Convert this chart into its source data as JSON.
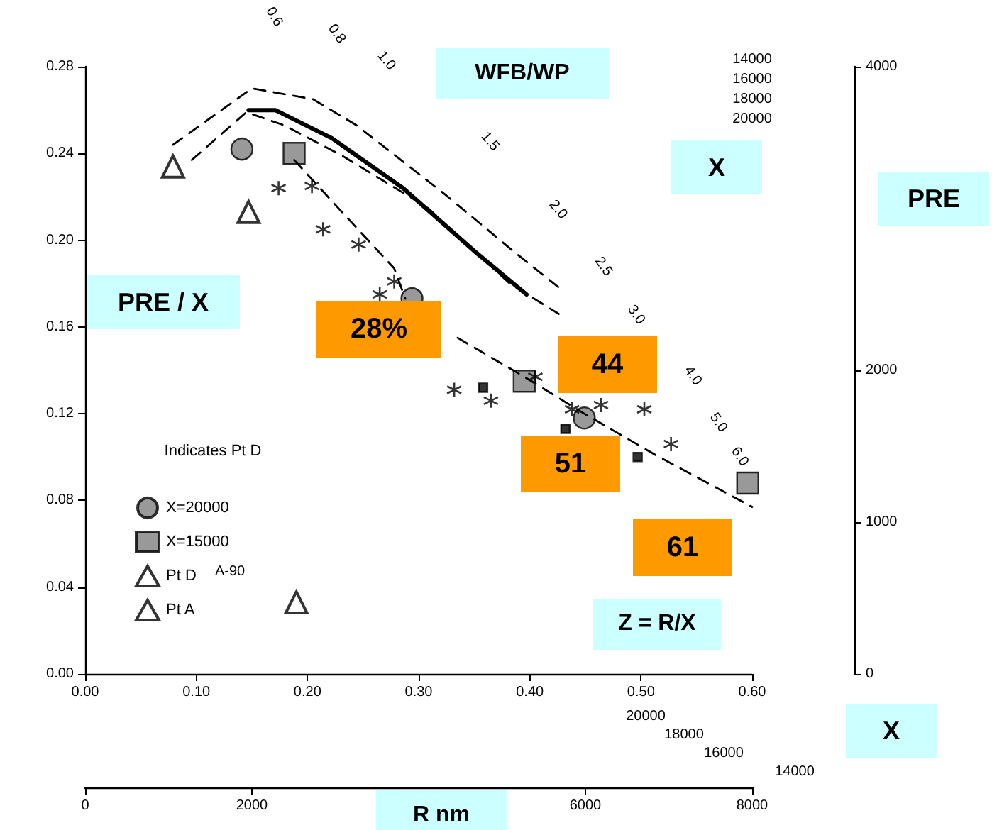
{
  "chart_data": {
    "type": "scatter",
    "title": "WFB/WP",
    "xlabel": "Z = R/X",
    "ylabel": "PRE / X",
    "y2label": "PRE",
    "x2label": "R nm",
    "legend_title": "Indicates Pt D",
    "xlim": [
      0,
      0.6
    ],
    "xticks": [
      {
        "value": 0,
        "label": "0.00"
      },
      {
        "value": 0.1,
        "label": "0.10"
      },
      {
        "value": 0.2,
        "label": "0.20"
      },
      {
        "value": 0.3,
        "label": "0.30"
      },
      {
        "value": 0.4,
        "label": "0.40"
      },
      {
        "value": 0.5,
        "label": "0.50"
      },
      {
        "value": 0.6,
        "label": "0.60"
      }
    ],
    "ylim": [
      0,
      0.28
    ],
    "yticks": [
      {
        "value": 0,
        "label": "0.00"
      },
      0.04,
      0.08,
      0.12,
      0.16,
      {
        "value": 0.2,
        "label": "0.20"
      },
      0.24,
      0.28
    ],
    "y2lim": [
      0,
      4000
    ],
    "y2ticks": [
      0,
      1000,
      2000,
      4000
    ],
    "x2lim": [
      0,
      8000
    ],
    "x2ticks": [
      0,
      2000,
      6000,
      8000
    ],
    "grid": false,
    "legend": "bottom left",
    "series": [
      {
        "type": "line",
        "marker": "none",
        "line_style": "solid",
        "color": "#000000",
        "x": [
          0.147,
          0.171,
          0.222,
          0.286,
          0.35,
          0.397
        ],
        "values": [
          0.26,
          0.26,
          0.247,
          0.224,
          0.195,
          0.175
        ]
      },
      {
        "type": "line",
        "marker": "none",
        "line_style": "dashed",
        "color": "#000000",
        "x": [
          0.079,
          0.15,
          0.205,
          0.244,
          0.324,
          0.385,
          0.429
        ],
        "values": [
          0.244,
          0.27,
          0.265,
          0.253,
          0.221,
          0.195,
          0.177
        ]
      },
      {
        "type": "line",
        "marker": "none",
        "line_style": "dashed",
        "color": "#000000",
        "x": [
          0.096,
          0.145,
          0.179,
          0.231,
          0.308,
          0.382,
          0.426
        ],
        "values": [
          0.237,
          0.259,
          0.253,
          0.239,
          0.215,
          0.18,
          0.166
        ]
      },
      {
        "type": "line",
        "marker": "none",
        "line_style": "dashed",
        "color": "#000000",
        "x": [
          0.335,
          0.395,
          0.449,
          0.513,
          0.6
        ],
        "values": [
          0.155,
          0.137,
          0.12,
          0.101,
          0.077
        ]
      },
      {
        "type": "line",
        "marker": "none",
        "line_style": "dashed",
        "color": "#000000",
        "x": [
          0.188,
          0.231,
          0.278,
          0.288
        ],
        "values": [
          0.237,
          0.213,
          0.187,
          0.173
        ]
      },
      {
        "name": "X=20000",
        "marker": "circle",
        "color": "#808080",
        "x": [
          0.141,
          0.294,
          0.449
        ],
        "values": [
          0.242,
          0.173,
          0.118
        ]
      },
      {
        "name": "X=15000",
        "marker": "square",
        "color": "#808080",
        "x": [
          0.188,
          0.395,
          0.596
        ],
        "values": [
          0.24,
          0.135,
          0.088
        ]
      },
      {
        "name": "Pt D",
        "marker": "triangle",
        "color": "#000000",
        "x": [
          0.147
        ],
        "values": [
          0.213
        ]
      },
      {
        "name": "Pt A",
        "marker": "triangle",
        "color": "#000000",
        "x": [
          0.079,
          0.19
        ],
        "values": [
          0.234,
          0.033
        ]
      },
      {
        "marker": "cross",
        "color": "#000000",
        "x": [
          0.174,
          0.204,
          0.214,
          0.246,
          0.278,
          0.265,
          0.332,
          0.365,
          0.405,
          0.438,
          0.464,
          0.503,
          0.527
        ],
        "values": [
          0.224,
          0.225,
          0.205,
          0.198,
          0.181,
          0.175,
          0.131,
          0.126,
          0.137,
          0.122,
          0.124,
          0.122,
          0.106
        ]
      },
      {
        "marker": "square",
        "color": "#000000",
        "x": [
          0.358,
          0.432,
          0.497
        ],
        "values": [
          0.132,
          0.113,
          0.1
        ]
      }
    ],
    "annotations": [
      "0.6",
      "0.8",
      "1.0",
      "1.5",
      "2.0",
      "2.5",
      "3.0",
      "4.0",
      "5.0",
      "6.0",
      "14000",
      "16000",
      "18000",
      "20000",
      "X",
      "20000",
      "18000",
      "16000",
      "14000",
      "X",
      "A-90",
      "28%",
      "44",
      "51",
      "61"
    ]
  }
}
